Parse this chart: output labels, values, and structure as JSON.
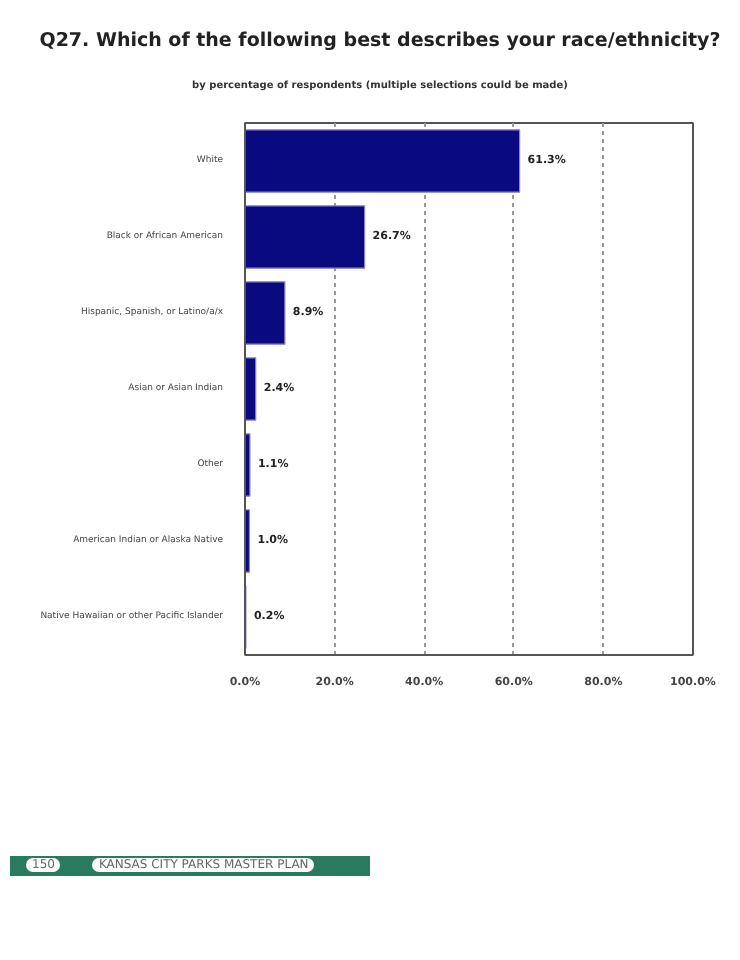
{
  "chart_data": {
    "type": "bar",
    "orientation": "horizontal",
    "title": "Q27. Which of the following best describes your race/ethnicity?",
    "subtitle": "by percentage of respondents (multiple selections could be made)",
    "categories": [
      "White",
      "Black or African American",
      "Hispanic, Spanish, or Latino/a/x",
      "Asian or Asian Indian",
      "Other",
      "American Indian or Alaska Native",
      "Native Hawaiian or other Pacific Islander"
    ],
    "values": [
      61.3,
      26.7,
      8.9,
      2.4,
      1.1,
      1.0,
      0.2
    ],
    "color": "#0a0a80",
    "value_labels": [
      "61.3%",
      "26.7%",
      "8.9%",
      "2.4%",
      "1.1%",
      "1.0%",
      "0.2%"
    ],
    "xlim": [
      0,
      100
    ],
    "xticks": [
      {
        "value": 0,
        "label": "0.0%"
      },
      {
        "value": 20,
        "label": "20.0%"
      },
      {
        "value": 40,
        "label": "40.0%"
      },
      {
        "value": 60,
        "label": "60.0%"
      },
      {
        "value": 80,
        "label": "80.0%"
      },
      {
        "value": 100,
        "label": "100.0%"
      }
    ],
    "grid": "x",
    "annotations": [
      "150",
      "KANSAS CITY PARKS MASTER PLAN"
    ]
  }
}
